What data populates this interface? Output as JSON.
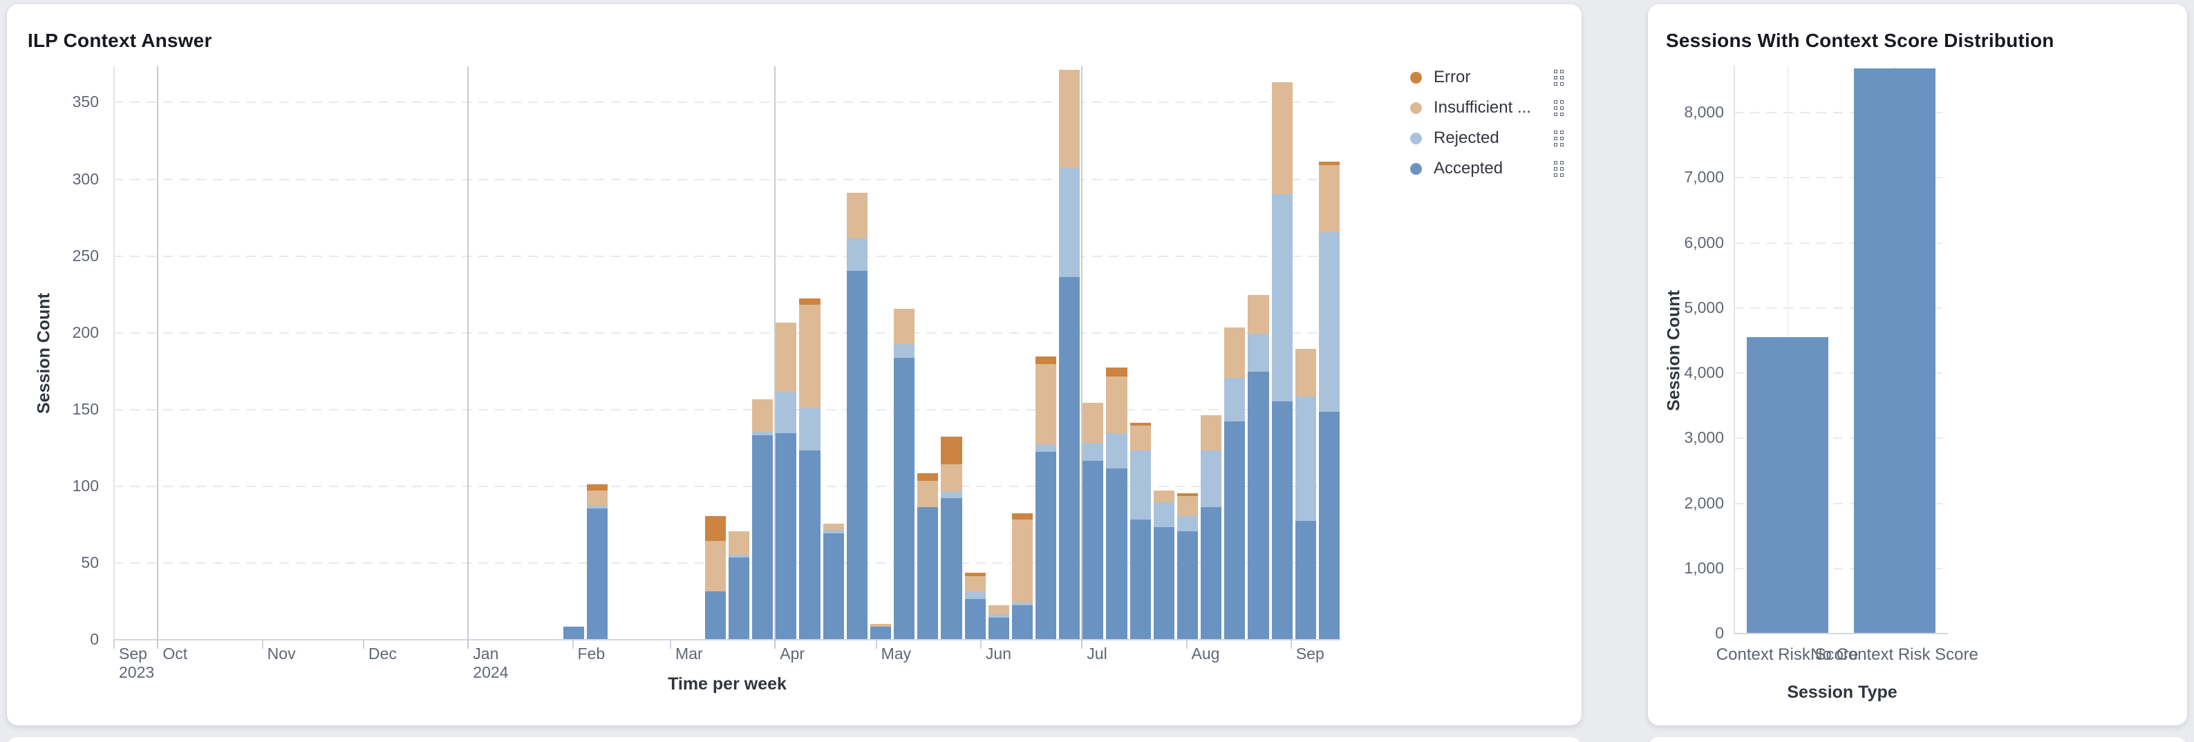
{
  "page": {
    "background": "#e9ebef"
  },
  "left_panel": {
    "title": "ILP Context Answer",
    "y_axis_title": "Session Count",
    "x_axis_title": "Time per week",
    "legend": [
      {
        "id": "error",
        "label": "Error",
        "color": "#cc8440"
      },
      {
        "id": "insufficient",
        "label": "Insufficient ...",
        "color": "#ddba95"
      },
      {
        "id": "rejected",
        "label": "Rejected",
        "color": "#a9c2dc"
      },
      {
        "id": "accepted",
        "label": "Accepted",
        "color": "#6b93c2"
      }
    ]
  },
  "right_panel": {
    "title": "Sessions With Context Score Distribution",
    "y_axis_title": "Session Count",
    "x_axis_title": "Session Type"
  },
  "chart_data": [
    {
      "type": "bar",
      "stacked": true,
      "title": "ILP Context Answer",
      "xlabel": "Time per week",
      "ylabel": "Session Count",
      "ylim": [
        0,
        373
      ],
      "yticks": [
        0,
        50,
        100,
        150,
        200,
        250,
        300,
        350
      ],
      "grid": "horizontal-dashed",
      "legend_position": "right",
      "x_domain": {
        "start": "2023-09-18",
        "days": 364,
        "total_week_slots": 52
      },
      "month_ticks": [
        {
          "label": "Sep\n2023",
          "day": 0,
          "quarter": false
        },
        {
          "label": "Oct",
          "day": 13,
          "quarter": true
        },
        {
          "label": "Nov",
          "day": 44,
          "quarter": false
        },
        {
          "label": "Dec",
          "day": 74,
          "quarter": false
        },
        {
          "label": "Jan\n2024",
          "day": 105,
          "quarter": true
        },
        {
          "label": "Feb",
          "day": 136,
          "quarter": false
        },
        {
          "label": "Mar",
          "day": 165,
          "quarter": false
        },
        {
          "label": "Apr",
          "day": 196,
          "quarter": true
        },
        {
          "label": "May",
          "day": 226,
          "quarter": false
        },
        {
          "label": "Jun",
          "day": 257,
          "quarter": false
        },
        {
          "label": "Jul",
          "day": 287,
          "quarter": true
        },
        {
          "label": "Aug",
          "day": 318,
          "quarter": false
        },
        {
          "label": "Sep",
          "day": 349,
          "quarter": false
        }
      ],
      "stack_order": [
        "accepted",
        "rejected",
        "insufficient",
        "error"
      ],
      "series_colors": {
        "accepted": "#6b93c2",
        "rejected": "#a9c2dc",
        "insufficient": "#ddba95",
        "error": "#cc8440"
      },
      "start_week_slot": 19,
      "weeks": [
        {
          "week": "Jan 29",
          "accepted": 8,
          "rejected": 0,
          "insufficient": 0,
          "error": 0
        },
        {
          "week": "Feb 5",
          "accepted": 85,
          "rejected": 2,
          "insufficient": 10,
          "error": 4
        },
        {
          "week": "Feb 12",
          "accepted": 0,
          "rejected": 0,
          "insufficient": 0,
          "error": 0
        },
        {
          "week": "Feb 19",
          "accepted": 0,
          "rejected": 0,
          "insufficient": 0,
          "error": 0
        },
        {
          "week": "Feb 26",
          "accepted": 0,
          "rejected": 0,
          "insufficient": 0,
          "error": 0
        },
        {
          "week": "Mar 4",
          "accepted": 0,
          "rejected": 0,
          "insufficient": 0,
          "error": 0
        },
        {
          "week": "Mar 11",
          "accepted": 31,
          "rejected": 0,
          "insufficient": 33,
          "error": 16
        },
        {
          "week": "Mar 18",
          "accepted": 53,
          "rejected": 2,
          "insufficient": 15,
          "error": 0
        },
        {
          "week": "Mar 25",
          "accepted": 133,
          "rejected": 2,
          "insufficient": 21,
          "error": 0
        },
        {
          "week": "Apr 1",
          "accepted": 134,
          "rejected": 27,
          "insufficient": 45,
          "error": 0
        },
        {
          "week": "Apr 8",
          "accepted": 123,
          "rejected": 28,
          "insufficient": 67,
          "error": 4
        },
        {
          "week": "Apr 15",
          "accepted": 69,
          "rejected": 2,
          "insufficient": 4,
          "error": 0
        },
        {
          "week": "Apr 22",
          "accepted": 240,
          "rejected": 21,
          "insufficient": 30,
          "error": 0
        },
        {
          "week": "Apr 29",
          "accepted": 8,
          "rejected": 0,
          "insufficient": 2,
          "error": 0
        },
        {
          "week": "May 6",
          "accepted": 183,
          "rejected": 9,
          "insufficient": 23,
          "error": 0
        },
        {
          "week": "May 13",
          "accepted": 86,
          "rejected": 0,
          "insufficient": 17,
          "error": 5
        },
        {
          "week": "May 20",
          "accepted": 92,
          "rejected": 4,
          "insufficient": 18,
          "error": 18
        },
        {
          "week": "May 27",
          "accepted": 26,
          "rejected": 5,
          "insufficient": 10,
          "error": 2
        },
        {
          "week": "Jun 3",
          "accepted": 14,
          "rejected": 2,
          "insufficient": 6,
          "error": 0
        },
        {
          "week": "Jun 10",
          "accepted": 22,
          "rejected": 2,
          "insufficient": 54,
          "error": 4
        },
        {
          "week": "Jun 17",
          "accepted": 122,
          "rejected": 5,
          "insufficient": 52,
          "error": 5
        },
        {
          "week": "Jun 24",
          "accepted": 236,
          "rejected": 71,
          "insufficient": 64,
          "error": 0
        },
        {
          "week": "Jul 1",
          "accepted": 116,
          "rejected": 12,
          "insufficient": 26,
          "error": 0
        },
        {
          "week": "Jul 8",
          "accepted": 111,
          "rejected": 23,
          "insufficient": 37,
          "error": 6
        },
        {
          "week": "Jul 15",
          "accepted": 78,
          "rejected": 45,
          "insufficient": 16,
          "error": 2
        },
        {
          "week": "Jul 22",
          "accepted": 73,
          "rejected": 16,
          "insufficient": 8,
          "error": 0
        },
        {
          "week": "Jul 29",
          "accepted": 70,
          "rejected": 10,
          "insufficient": 13,
          "error": 2
        },
        {
          "week": "Aug 5",
          "accepted": 86,
          "rejected": 37,
          "insufficient": 23,
          "error": 0
        },
        {
          "week": "Aug 12",
          "accepted": 142,
          "rejected": 28,
          "insufficient": 33,
          "error": 0
        },
        {
          "week": "Aug 19",
          "accepted": 174,
          "rejected": 25,
          "insufficient": 25,
          "error": 0
        },
        {
          "week": "Aug 26",
          "accepted": 155,
          "rejected": 135,
          "insufficient": 73,
          "error": 0
        },
        {
          "week": "Sep 2",
          "accepted": 77,
          "rejected": 81,
          "insufficient": 31,
          "error": 0
        },
        {
          "week": "Sep 9",
          "accepted": 148,
          "rejected": 117,
          "insufficient": 44,
          "error": 2
        }
      ]
    },
    {
      "type": "bar",
      "stacked": false,
      "title": "Sessions With Context Score Distribution",
      "xlabel": "Session Type",
      "ylabel": "Session Count",
      "categories": [
        "Context Risk Score",
        "No Context Risk Score"
      ],
      "values": [
        4540,
        8670
      ],
      "bar_color": "#6b93c2",
      "ylim": [
        0,
        8720
      ],
      "yticks": [
        0,
        1000,
        2000,
        3000,
        4000,
        5000,
        6000,
        7000,
        8000
      ],
      "ytick_labels": [
        "0",
        "1,000",
        "2,000",
        "3,000",
        "4,000",
        "5,000",
        "6,000",
        "7,000",
        "8,000"
      ],
      "grid": "horizontal-dashed"
    }
  ]
}
